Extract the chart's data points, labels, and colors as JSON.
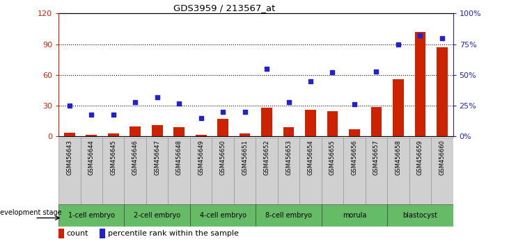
{
  "title": "GDS3959 / 213567_at",
  "samples": [
    "GSM456643",
    "GSM456644",
    "GSM456645",
    "GSM456646",
    "GSM456647",
    "GSM456648",
    "GSM456649",
    "GSM456650",
    "GSM456651",
    "GSM456652",
    "GSM456653",
    "GSM456654",
    "GSM456655",
    "GSM456656",
    "GSM456657",
    "GSM456658",
    "GSM456659",
    "GSM456660"
  ],
  "counts": [
    4,
    2,
    3,
    10,
    11,
    9,
    2,
    17,
    3,
    28,
    9,
    26,
    25,
    7,
    29,
    56,
    102,
    87
  ],
  "percentiles": [
    25,
    18,
    18,
    28,
    32,
    27,
    15,
    20,
    20,
    55,
    28,
    45,
    52,
    26,
    53,
    75,
    82,
    80
  ],
  "stages": [
    {
      "label": "1-cell embryo",
      "start": 0,
      "end": 3
    },
    {
      "label": "2-cell embryo",
      "start": 3,
      "end": 6
    },
    {
      "label": "4-cell embryo",
      "start": 6,
      "end": 9
    },
    {
      "label": "8-cell embryo",
      "start": 9,
      "end": 12
    },
    {
      "label": "morula",
      "start": 12,
      "end": 15
    },
    {
      "label": "blastocyst",
      "start": 15,
      "end": 18
    }
  ],
  "ylim_left": [
    0,
    120
  ],
  "yticks_left": [
    0,
    30,
    60,
    90,
    120
  ],
  "yticks_right": [
    0,
    25,
    50,
    75,
    100
  ],
  "ytick_labels_right": [
    "0%",
    "25%",
    "50%",
    "75%",
    "100%"
  ],
  "bar_color": "#CC2200",
  "scatter_color": "#2222CC",
  "background_color": "#ffffff",
  "stage_label": "development stage",
  "legend_count": "count",
  "legend_percentile": "percentile rank within the sample",
  "bar_width": 0.5,
  "stage_green": "#66BB66",
  "tick_gray": "#C8C8C8"
}
